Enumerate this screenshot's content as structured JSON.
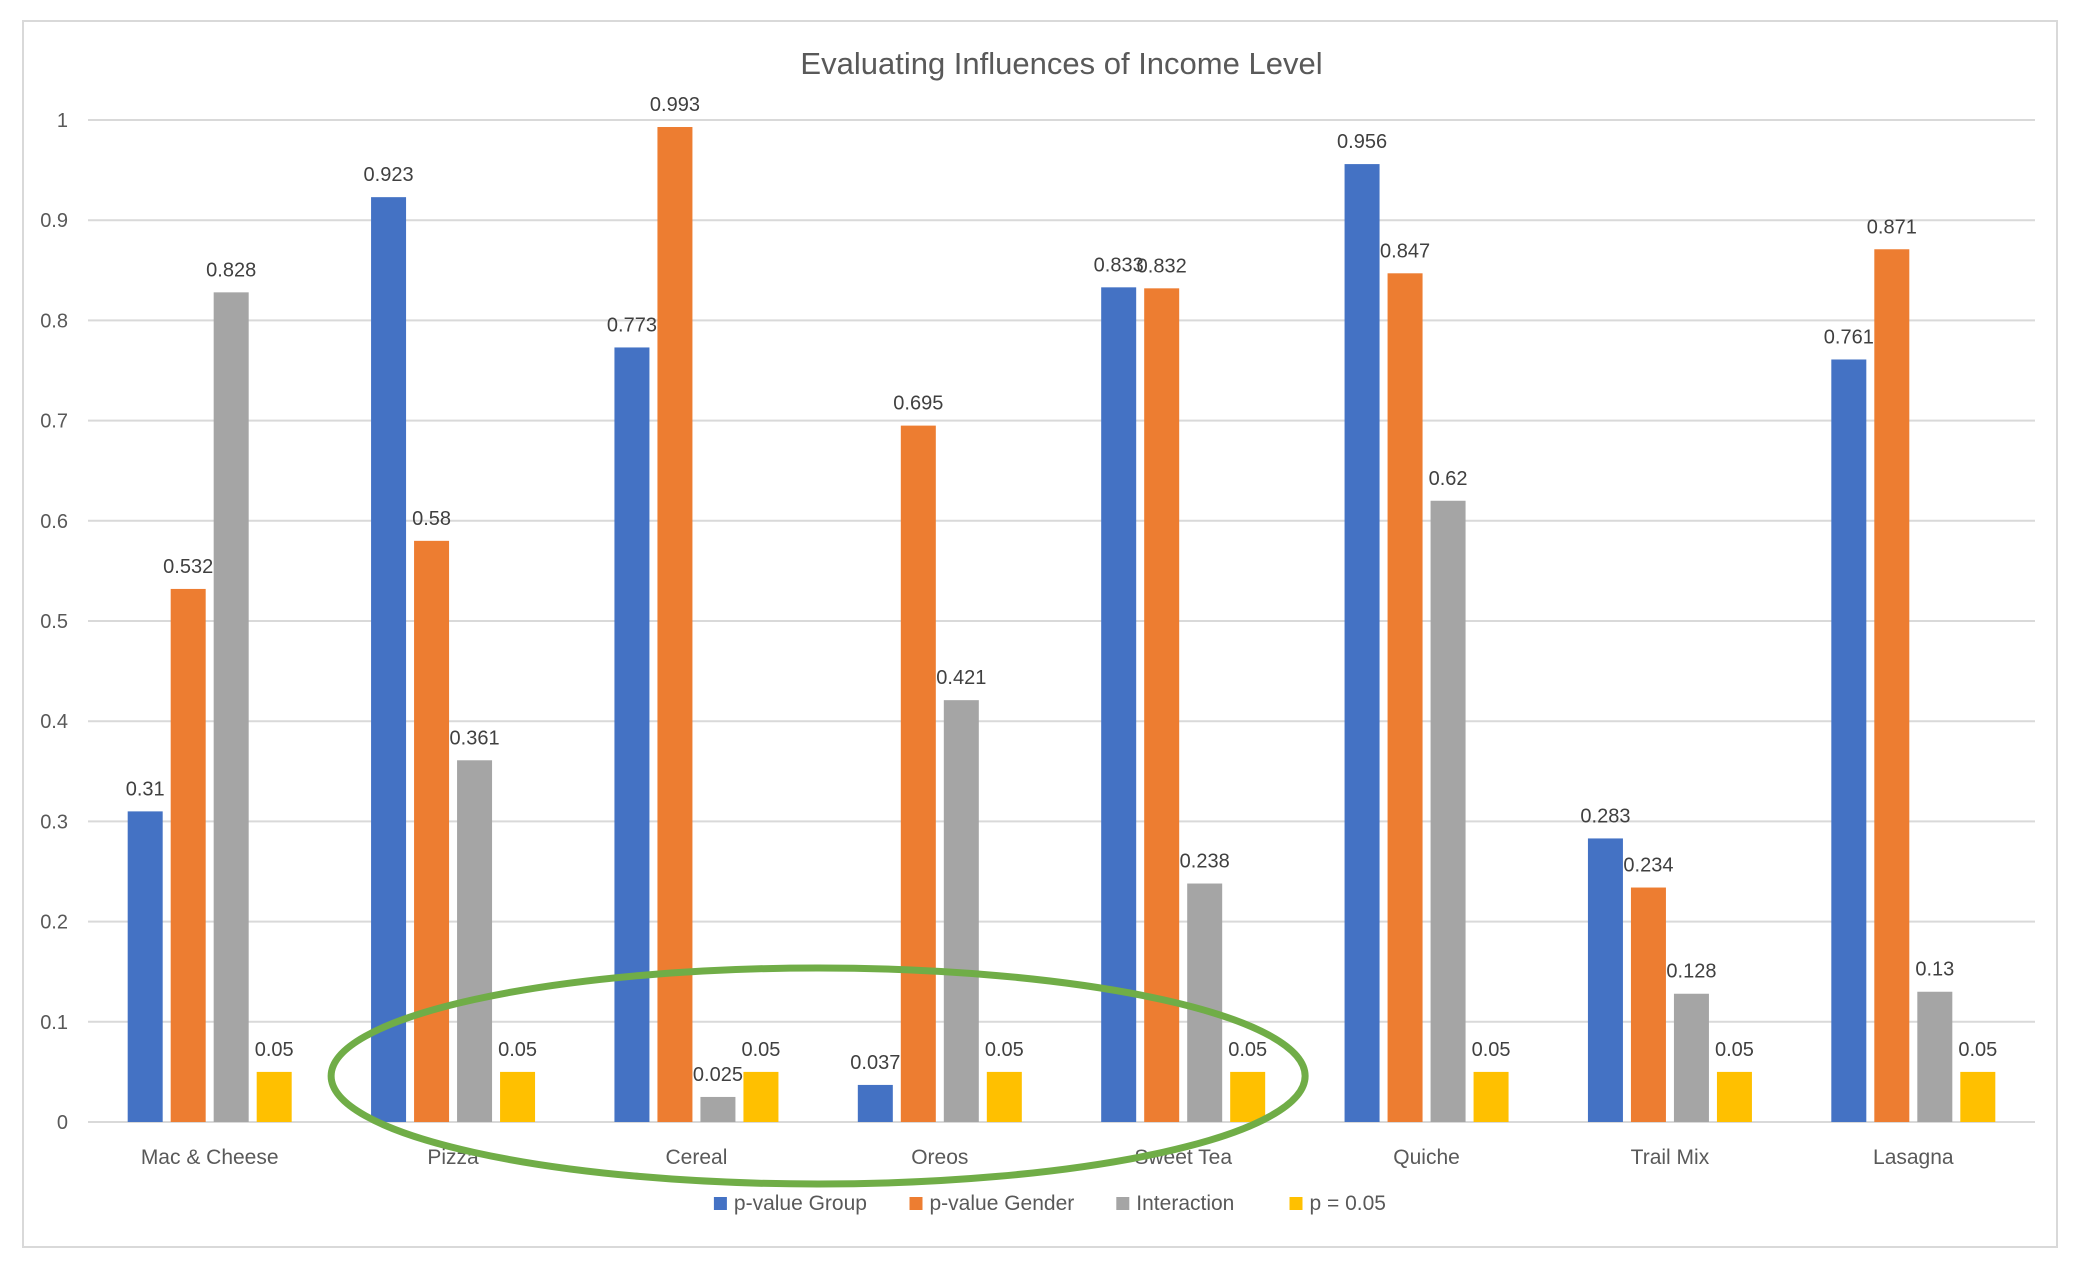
{
  "chart_data": {
    "type": "bar",
    "title": "Evaluating Influences of Income Level",
    "xlabel": "",
    "ylabel": "",
    "ylim": [
      0,
      1
    ],
    "yticks": [
      0,
      0.1,
      0.2,
      0.3,
      0.4,
      0.5,
      0.6,
      0.7,
      0.8,
      0.9,
      1
    ],
    "ytick_labels": [
      "0",
      "0.1",
      "0.2",
      "0.3",
      "0.4",
      "0.5",
      "0.6",
      "0.7",
      "0.8",
      "0.9",
      "1"
    ],
    "grid": true,
    "legend_position": "bottom",
    "categories": [
      "Mac & Cheese",
      "Pizza",
      "Cereal",
      "Oreos",
      "Sweet Tea",
      "Quiche",
      "Trail Mix",
      "Lasagna"
    ],
    "series": [
      {
        "name": "p-value Group",
        "color": "#4472c4",
        "values": [
          0.31,
          0.923,
          0.773,
          0.037,
          0.833,
          0.956,
          0.283,
          0.761
        ],
        "labels": [
          "0.31",
          "0.923",
          "0.773",
          "0.037",
          "0.833",
          "0.956",
          "0.283",
          "0.761"
        ]
      },
      {
        "name": "p-value Gender",
        "color": "#ed7d31",
        "values": [
          0.532,
          0.58,
          0.993,
          0.695,
          0.832,
          0.847,
          0.234,
          0.871
        ],
        "labels": [
          "0.532",
          "0.58",
          "0.993",
          "0.695",
          "0.832",
          "0.847",
          "0.234",
          "0.871"
        ]
      },
      {
        "name": "Interaction",
        "color": "#a5a5a5",
        "values": [
          0.828,
          0.361,
          0.025,
          0.421,
          0.238,
          0.62,
          0.128,
          0.13
        ],
        "labels": [
          "0.828",
          "0.361",
          "0.025",
          "0.421",
          "0.238",
          "0.62",
          "0.128",
          "0.13"
        ]
      },
      {
        "name": "p = 0.05",
        "color": "#ffc000",
        "values": [
          0.05,
          0.05,
          0.05,
          0.05,
          0.05,
          0.05,
          0.05,
          0.05
        ],
        "labels": [
          "0.05",
          "0.05",
          "0.05",
          "0.05",
          "0.05",
          "0.05",
          "0.05",
          "0.05"
        ]
      }
    ],
    "annotations": [
      {
        "shape": "ellipse",
        "color": "#70ad47",
        "around_categories": [
          "Cereal",
          "Oreos"
        ]
      }
    ]
  },
  "colors": {
    "grid": "#d9d9d9",
    "axis_text": "#595959",
    "highlight_ellipse": "#70ad47"
  }
}
